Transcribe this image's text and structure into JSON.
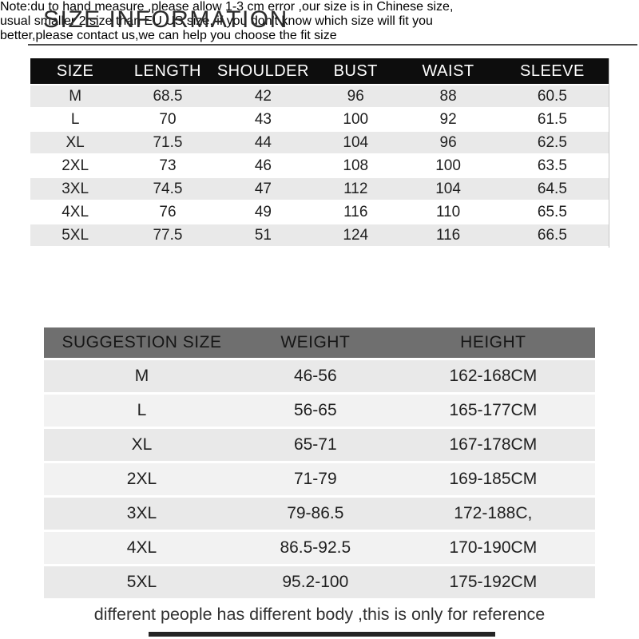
{
  "page": {
    "title": "SIZE INFORMATION",
    "footer": "different people has different body ,this is only for reference"
  },
  "note": {
    "lines": [
      "Note:du to hand measure ,please allow 1-3 cm error ,our size is in Chinese size,",
      "usual smaller 2 size than EU US size, if you don't know which size will fit you",
      "better,please contact us,we can help you choose the fit size"
    ]
  },
  "size_table": {
    "headers": [
      "SIZE",
      "LENGTH",
      "SHOULDER",
      "BUST",
      "WAIST",
      "SLEEVE"
    ],
    "rows": [
      [
        "M",
        "68.5",
        "42",
        "96",
        "88",
        "60.5"
      ],
      [
        "L",
        "70",
        "43",
        "100",
        "92",
        "61.5"
      ],
      [
        "XL",
        "71.5",
        "44",
        "104",
        "96",
        "62.5"
      ],
      [
        "2XL",
        "73",
        "46",
        "108",
        "100",
        "63.5"
      ],
      [
        "3XL",
        "74.5",
        "47",
        "112",
        "104",
        "64.5"
      ],
      [
        "4XL",
        "76",
        "49",
        "116",
        "110",
        "65.5"
      ],
      [
        "5XL",
        "77.5",
        "51",
        "124",
        "116",
        "66.5"
      ]
    ]
  },
  "suggestion_table": {
    "headers": [
      "SUGGESTION SIZE",
      "WEIGHT",
      "HEIGHT"
    ],
    "rows": [
      [
        "M",
        "46-56",
        "162-168CM"
      ],
      [
        "L",
        "56-65",
        "165-177CM"
      ],
      [
        "XL",
        "65-71",
        "167-178CM"
      ],
      [
        "2XL",
        "71-79",
        "169-185CM"
      ],
      [
        "3XL",
        "79-86.5",
        "172-188C,"
      ],
      [
        "4XL",
        "86.5-92.5",
        "170-190CM"
      ],
      [
        "5XL",
        "95.2-100",
        "175-192CM"
      ]
    ]
  },
  "colors": {
    "size_header_bg": "#0d0d0d",
    "size_header_text": "#ffffff",
    "suggestion_header_bg": "#6f6f6f",
    "suggestion_header_text": "#161616",
    "row_gray": "#e9e9e9",
    "row_light": "#f2f2f2",
    "body_text": "#1f1f1f"
  }
}
